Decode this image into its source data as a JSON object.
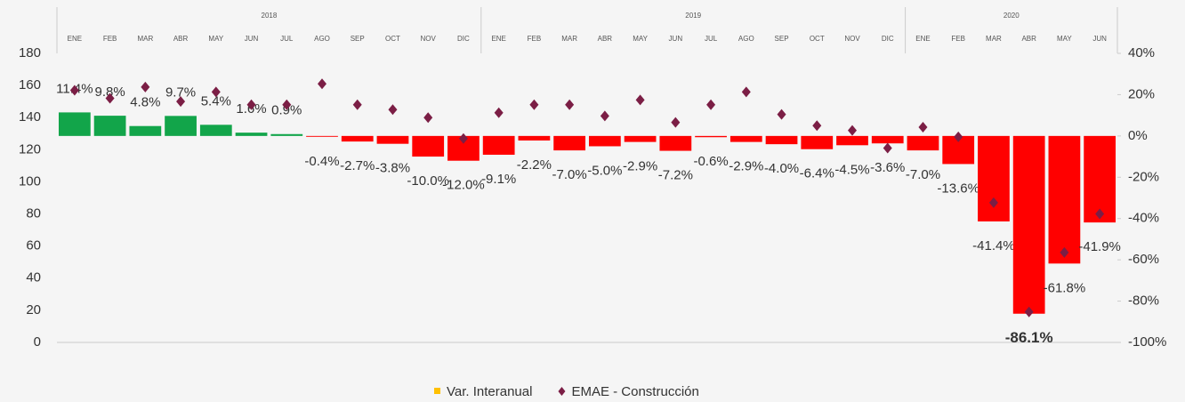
{
  "chart_data": {
    "type": "bar",
    "year_groups": [
      {
        "name": "2018",
        "categories": [
          "ENE",
          "FEB",
          "MAR",
          "ABR",
          "MAY",
          "JUN",
          "JUL",
          "AGO",
          "SEP",
          "OCT",
          "NOV",
          "DIC"
        ]
      },
      {
        "name": "2019",
        "categories": [
          "ENE",
          "FEB",
          "MAR",
          "ABR",
          "MAY",
          "JUN",
          "JUL",
          "AGO",
          "SEP",
          "OCT",
          "NOV",
          "DIC"
        ]
      },
      {
        "name": "2020",
        "categories": [
          "ENE",
          "FEB",
          "MAR",
          "ABR",
          "MAY",
          "JUN"
        ]
      }
    ],
    "series": [
      {
        "name": "Var. Interanual",
        "type": "bar",
        "axis": "y2",
        "color": "#ffc000",
        "positive_color": "#12a54a",
        "negative_color": "#ff0000",
        "values": [
          11.4,
          9.8,
          4.8,
          9.7,
          5.4,
          1.6,
          0.9,
          -0.4,
          -2.7,
          -3.8,
          -10.0,
          -12.0,
          -9.1,
          -2.2,
          -7.0,
          -5.0,
          -2.9,
          -7.2,
          -0.6,
          -2.9,
          -4.0,
          -6.4,
          -4.5,
          -3.6,
          -7.0,
          -13.6,
          -41.4,
          -86.1,
          -61.8,
          -41.9
        ],
        "value_labels": [
          "11.4%",
          "9.8%",
          "4.8%",
          "9.7%",
          "5.4%",
          "1.6%",
          "0.9%",
          "-0.4%",
          "-2.7%",
          "-3.8%",
          "-10.0%",
          "-12.0%",
          "-9.1%",
          "-2.2%",
          "-7.0%",
          "-5.0%",
          "-2.9%",
          "-7.2%",
          "-0.6%",
          "-2.9%",
          "-4.0%",
          "-6.4%",
          "-4.5%",
          "-3.6%",
          "-7.0%",
          "-13.6%",
          "-41.4%",
          "-86.1%",
          "-61.8%",
          "-41.9%"
        ]
      },
      {
        "name": "EMAE - Construcción",
        "type": "scatter",
        "axis": "y",
        "color": "#7b1e45",
        "values": [
          157,
          152,
          159,
          150,
          156,
          148,
          148,
          161,
          148,
          145,
          140,
          127,
          143,
          148,
          148,
          141,
          151,
          137,
          148,
          156,
          142,
          135,
          132,
          121,
          134,
          128,
          87,
          19,
          56,
          80
        ]
      }
    ],
    "ylim": [
      0,
      180
    ],
    "yticks": [
      0,
      20,
      40,
      60,
      80,
      100,
      120,
      140,
      160,
      180
    ],
    "y2lim": [
      -100,
      40
    ],
    "y2ticks": [
      {
        "value": -100,
        "label": "-100%"
      },
      {
        "value": -80,
        "label": "-80%"
      },
      {
        "value": -60,
        "label": "-60%"
      },
      {
        "value": -40,
        "label": "-40%"
      },
      {
        "value": -20,
        "label": "-20%"
      },
      {
        "value": 0,
        "label": "0%"
      },
      {
        "value": 20,
        "label": "20%"
      },
      {
        "value": 40,
        "label": "40%"
      }
    ],
    "grid": false
  }
}
